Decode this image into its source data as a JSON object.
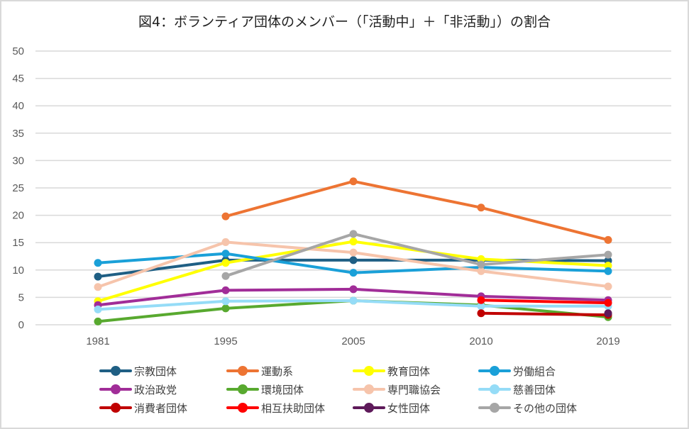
{
  "chart_data": {
    "type": "line",
    "title": "図4：ボランティア団体のメンバー（「活動中」＋「非活動」）の割合",
    "xlabel": "",
    "ylabel": "",
    "categories": [
      "1981",
      "1995",
      "2005",
      "2010",
      "2019"
    ],
    "ylim": [
      0,
      50
    ],
    "yticks": [
      "0",
      "5",
      "10",
      "15",
      "20",
      "25",
      "30",
      "35",
      "40",
      "45",
      "50"
    ],
    "grid": true,
    "legend_position": "bottom",
    "series": [
      {
        "name": "宗教団体",
        "color": "#1f5f84",
        "values": [
          8.8,
          11.8,
          11.8,
          11.8,
          11.7
        ]
      },
      {
        "name": "運動系",
        "color": "#ed7433",
        "values": [
          null,
          19.8,
          26.2,
          21.4,
          15.5
        ]
      },
      {
        "name": "教育団体",
        "color": "#ffff00",
        "values": [
          4.3,
          11.3,
          15.2,
          12.0,
          10.8
        ]
      },
      {
        "name": "労働組合",
        "color": "#1aa0d8",
        "values": [
          11.3,
          13.0,
          9.5,
          10.5,
          9.8
        ]
      },
      {
        "name": "政治政党",
        "color": "#a12d98",
        "values": [
          3.6,
          6.3,
          6.5,
          5.2,
          4.5
        ]
      },
      {
        "name": "環境団体",
        "color": "#58a92f",
        "values": [
          0.6,
          3.0,
          4.4,
          3.6,
          1.4
        ]
      },
      {
        "name": "専門職協会",
        "color": "#f6c4ab",
        "values": [
          6.9,
          15.1,
          13.2,
          9.8,
          7.0
        ]
      },
      {
        "name": "慈善団体",
        "color": "#95dcf7",
        "values": [
          2.8,
          4.3,
          4.4,
          3.4,
          3.4
        ]
      },
      {
        "name": "消費者団体",
        "color": "#c00000",
        "values": [
          null,
          null,
          null,
          2.1,
          1.8
        ]
      },
      {
        "name": "相互扶助団体",
        "color": "#ff0000",
        "values": [
          null,
          null,
          null,
          4.5,
          4.0
        ]
      },
      {
        "name": "女性団体",
        "color": "#5e1a5a",
        "values": [
          null,
          null,
          null,
          null,
          2.1
        ]
      },
      {
        "name": "その他の団体",
        "color": "#a6a6a6",
        "values": [
          null,
          8.9,
          16.6,
          11.0,
          12.8
        ]
      }
    ]
  }
}
